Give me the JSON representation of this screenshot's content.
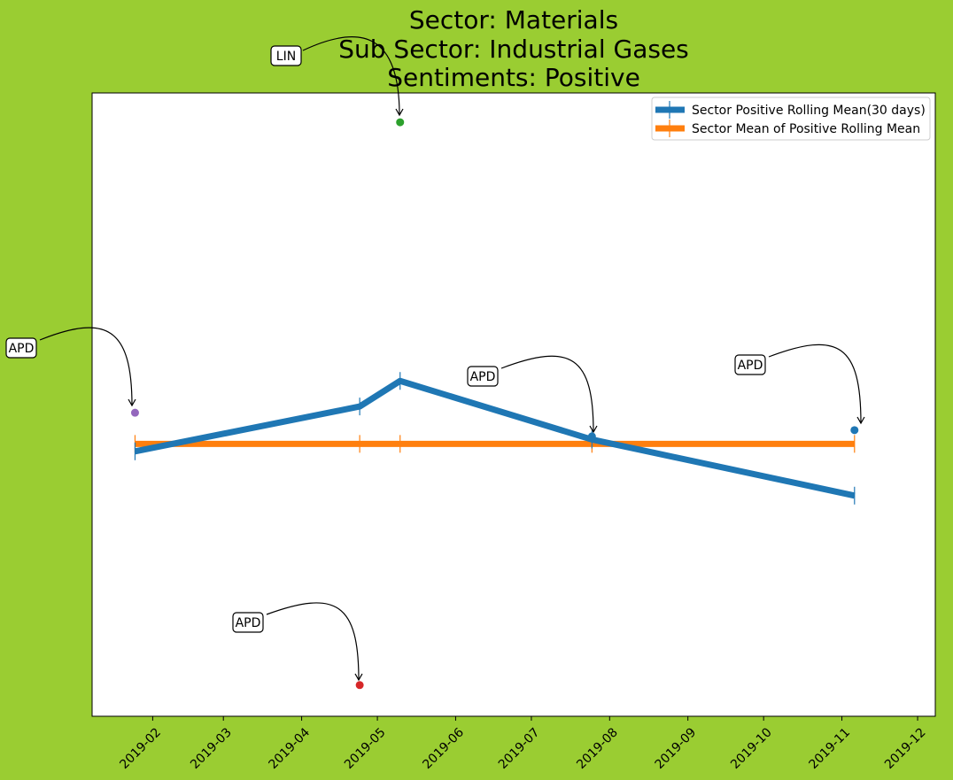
{
  "chart_data": {
    "type": "line",
    "title_lines": [
      "Sector:  Materials",
      "Sub Sector:  Industrial Gases",
      "Sentiments:  Positive"
    ],
    "xlabel": "",
    "ylabel": "",
    "x_ticks": [
      "2019-02",
      "2019-03",
      "2019-04",
      "2019-05",
      "2019-06",
      "2019-07",
      "2019-08",
      "2019-09",
      "2019-10",
      "2019-11",
      "2019-12"
    ],
    "x_range": [
      "2019-01-08",
      "2019-12-08"
    ],
    "y_range": [
      0.0,
      1.0
    ],
    "y_ticks_shown": false,
    "grid": false,
    "legend_position": "top-right",
    "series": [
      {
        "name": "Sector Positive Rolling Mean(30 days)",
        "color": "#1f77b4",
        "points": [
          {
            "x": "2019-01-25",
            "y": 0.425
          },
          {
            "x": "2019-04-24",
            "y": 0.497
          },
          {
            "x": "2019-05-10",
            "y": 0.538
          },
          {
            "x": "2019-07-25",
            "y": 0.444
          },
          {
            "x": "2019-11-06",
            "y": 0.354
          }
        ]
      },
      {
        "name": "Sector Mean of Positive Rolling Mean",
        "color": "#ff7f0e",
        "points": [
          {
            "x": "2019-01-25",
            "y": 0.437
          },
          {
            "x": "2019-04-24",
            "y": 0.437
          },
          {
            "x": "2019-05-10",
            "y": 0.437
          },
          {
            "x": "2019-07-25",
            "y": 0.437
          },
          {
            "x": "2019-11-06",
            "y": 0.437
          }
        ]
      }
    ],
    "annotations": [
      {
        "label": "APD",
        "x": "2019-01-25",
        "y": 0.487,
        "color": "#9467bd"
      },
      {
        "label": "LIN",
        "x": "2019-05-10",
        "y": 0.953,
        "color": "#2ca02c"
      },
      {
        "label": "APD",
        "x": "2019-04-24",
        "y": 0.05,
        "color": "#d62728"
      },
      {
        "label": "APD",
        "x": "2019-07-25",
        "y": 0.449,
        "color": "#1f77b4"
      },
      {
        "label": "APD",
        "x": "2019-11-06",
        "y": 0.459,
        "color": "#1f77b4"
      }
    ]
  }
}
